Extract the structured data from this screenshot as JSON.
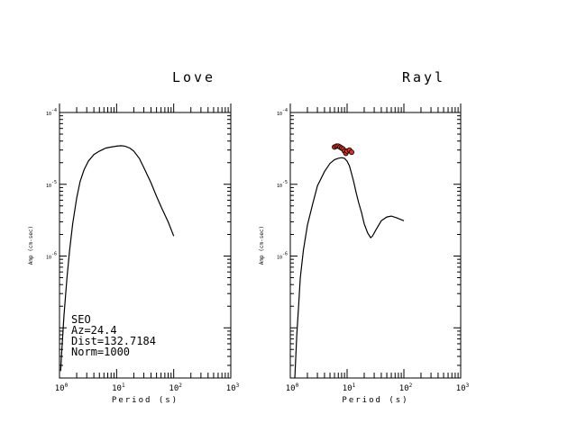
{
  "chart_data": [
    {
      "type": "line",
      "title": "Love",
      "xlabel": "Period (s)",
      "ylabel": "Amp (cm-sec)",
      "x_scale": "log",
      "y_scale": "log",
      "xlim": [
        1,
        1000
      ],
      "ylim": [
        2e-08,
        0.0001
      ],
      "x_ticks": [
        "10^0",
        "10^1",
        "10^2",
        "10^3"
      ],
      "y_ticks": [
        "10^-4",
        "10^-5",
        "10^-6"
      ],
      "series": [
        {
          "style": "line",
          "x": [
            1.05,
            1.1,
            1.2,
            1.35,
            1.5,
            1.7,
            2.0,
            2.3,
            2.7,
            3.2,
            4.0,
            5.0,
            6.5,
            8.0,
            10.0,
            12.0,
            14.0,
            17.0,
            20.0,
            25.0,
            30.0,
            40.0,
            50.0,
            60.0,
            80.0,
            100.0
          ],
          "y": [
            2.5e-08,
            5e-08,
            1.5e-07,
            5e-07,
            1.2e-06,
            2.8e-06,
            6.5e-06,
            1.1e-05,
            1.6e-05,
            2.1e-05,
            2.6e-05,
            2.9e-05,
            3.2e-05,
            3.3e-05,
            3.4e-05,
            3.45e-05,
            3.4e-05,
            3.2e-05,
            2.9e-05,
            2.3e-05,
            1.7e-05,
            1.05e-05,
            6.8e-06,
            4.9e-06,
            3e-06,
            1.9e-06
          ]
        }
      ],
      "annotations": [
        "SEO",
        "Az=24.4",
        "Dist=132.7184",
        "Norm=1000"
      ]
    },
    {
      "type": "line",
      "title": "Rayl",
      "xlabel": "Period (s)",
      "ylabel": "Amp (cm-sec)",
      "x_scale": "log",
      "y_scale": "log",
      "xlim": [
        1,
        1000
      ],
      "ylim": [
        2e-08,
        0.0001
      ],
      "x_ticks": [
        "10^0",
        "10^1",
        "10^2",
        "10^3"
      ],
      "y_ticks": [
        "10^-4",
        "10^-5",
        "10^-6"
      ],
      "series": [
        {
          "style": "line",
          "x": [
            1.2,
            1.3,
            1.4,
            1.5,
            1.7,
            2.0,
            2.5,
            3.0,
            4.0,
            5.0,
            6.0,
            7.0,
            8.0,
            9.0,
            10.0,
            11.0,
            12.0,
            13.0,
            14.5,
            16.0,
            18.0,
            20.0,
            23.0,
            26.0,
            28.0,
            32.0,
            40.0,
            50.0,
            60.0,
            75.0,
            100.0
          ],
          "y": [
            2e-08,
            8e-08,
            2e-07,
            5e-07,
            1.2e-06,
            2.7e-06,
            5.5e-06,
            9.5e-06,
            1.5e-05,
            1.95e-05,
            2.2e-05,
            2.3e-05,
            2.35e-05,
            2.3e-05,
            2.1e-05,
            1.8e-05,
            1.4e-05,
            1.1e-05,
            7.5e-06,
            5.5e-06,
            4e-06,
            2.8e-06,
            2.1e-06,
            1.8e-06,
            1.9e-06,
            2.3e-06,
            3.1e-06,
            3.5e-06,
            3.6e-06,
            3.4e-06,
            3.1e-06
          ]
        },
        {
          "style": "points",
          "x": [
            6.0,
            6.5,
            7.0,
            7.5,
            8.0,
            8.5,
            9.0,
            9.5,
            10.0,
            11.0,
            12.0
          ],
          "y": [
            3.3e-05,
            3.4e-05,
            3.4e-05,
            3.3e-05,
            3.2e-05,
            3.1e-05,
            2.9e-05,
            2.7e-05,
            2.9e-05,
            3e-05,
            2.8e-05
          ]
        }
      ]
    }
  ]
}
